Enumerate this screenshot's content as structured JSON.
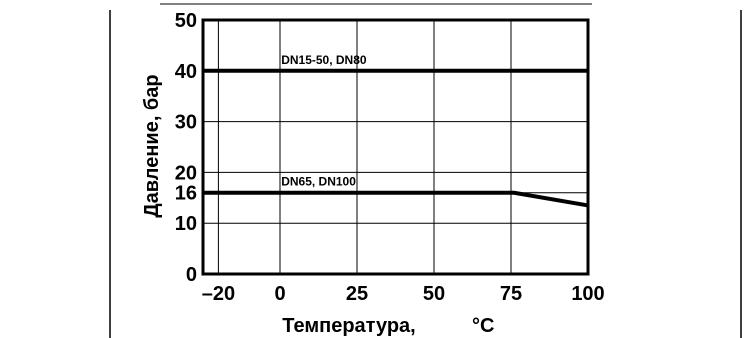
{
  "chart_data": {
    "type": "line",
    "xlabel": "Температура,",
    "xlabel_unit": "°C",
    "ylabel": "Давление, бар",
    "xlim": [
      -25,
      100
    ],
    "ylim": [
      0,
      50
    ],
    "x_ticks": [
      -20,
      0,
      25,
      50,
      75,
      100
    ],
    "x_tick_labels": [
      "–20",
      "0",
      "25",
      "50",
      "75",
      "100"
    ],
    "y_ticks": [
      0,
      10,
      16,
      20,
      30,
      40,
      50
    ],
    "y_tick_labels": [
      "0",
      "10",
      "16",
      "20",
      "30",
      "40",
      "50"
    ],
    "grid": true,
    "series": [
      {
        "name": "DN15-50, DN80",
        "x": [
          -25,
          100
        ],
        "y": [
          40,
          40
        ]
      },
      {
        "name": "DN65, DN100",
        "x": [
          -25,
          76,
          100
        ],
        "y": [
          16,
          16,
          13.5
        ]
      }
    ],
    "colors": {
      "line": "#000000",
      "grid": "#000000",
      "background": "#ffffff"
    }
  }
}
